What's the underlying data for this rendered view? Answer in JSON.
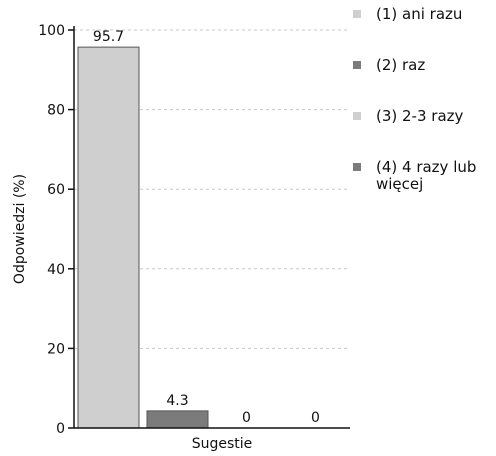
{
  "chart_data": {
    "type": "bar",
    "categories": [
      "(1) ani razu",
      "(2) raz",
      "(3) 2-3 razy",
      "(4) 4 razy lub więcej"
    ],
    "values": [
      95.7,
      4.3,
      0,
      0
    ],
    "value_labels": [
      "95.7",
      "4.3",
      "0",
      "0"
    ],
    "colors": [
      "#cfcfcf",
      "#7b7b7b",
      "#cfcfcf",
      "#7b7b7b"
    ],
    "xlabel": "Sugestie",
    "ylabel": "Odpowiedzi (%)",
    "ylim": [
      0,
      100
    ],
    "yticks": [
      "0",
      "20",
      "40",
      "60",
      "80",
      "100"
    ],
    "grid": true,
    "legend_position": "right"
  }
}
